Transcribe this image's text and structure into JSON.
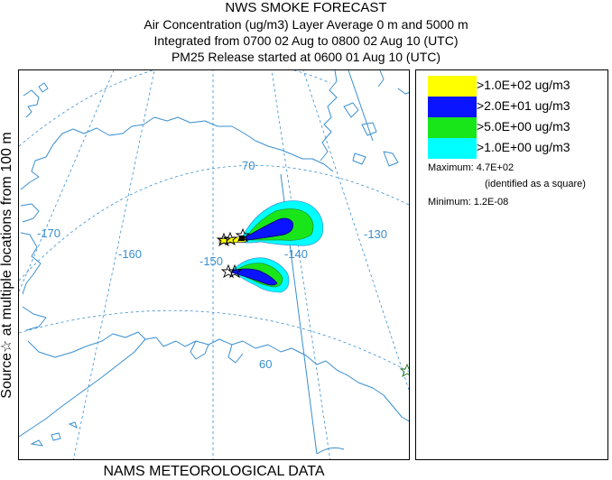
{
  "header": {
    "title": "NWS SMOKE FORECAST",
    "line2": "Air Concentration (ug/m3) Layer Average    0 m and  5000 m",
    "line3": "Integrated from 0700 02 Aug to 0800 02 Aug 10 (UTC)",
    "line4": "PM25 Release started at 0600 01 Aug 10 (UTC)"
  },
  "side_label": "Source☆  at multiple locations    from   100 m",
  "bottom_label": "NAMS METEOROLOGICAL DATA",
  "map": {
    "coast_color": "#3a8fd0",
    "grid_color": "#3a8fd0",
    "longitude_labels": [
      "-170",
      "-160",
      "-150",
      "-140",
      "-130"
    ],
    "latitude_labels": [
      "70",
      "60"
    ]
  },
  "legend": {
    "entries": [
      {
        "label": ">1.0E+02 ug/m3",
        "color": "#ffff00"
      },
      {
        "label": ">2.0E+01 ug/m3",
        "color": "#0a14ff"
      },
      {
        "label": ">5.0E+00 ug/m3",
        "color": "#19e619"
      },
      {
        "label": ">1.0E+00 ug/m3",
        "color": "#00ffff"
      }
    ],
    "maximum_label": "Maximum:",
    "maximum_value": "4.7E+02",
    "maximum_note": "(identified as a square)",
    "minimum_label": "Minimum:",
    "minimum_value": "1.2E-08"
  }
}
